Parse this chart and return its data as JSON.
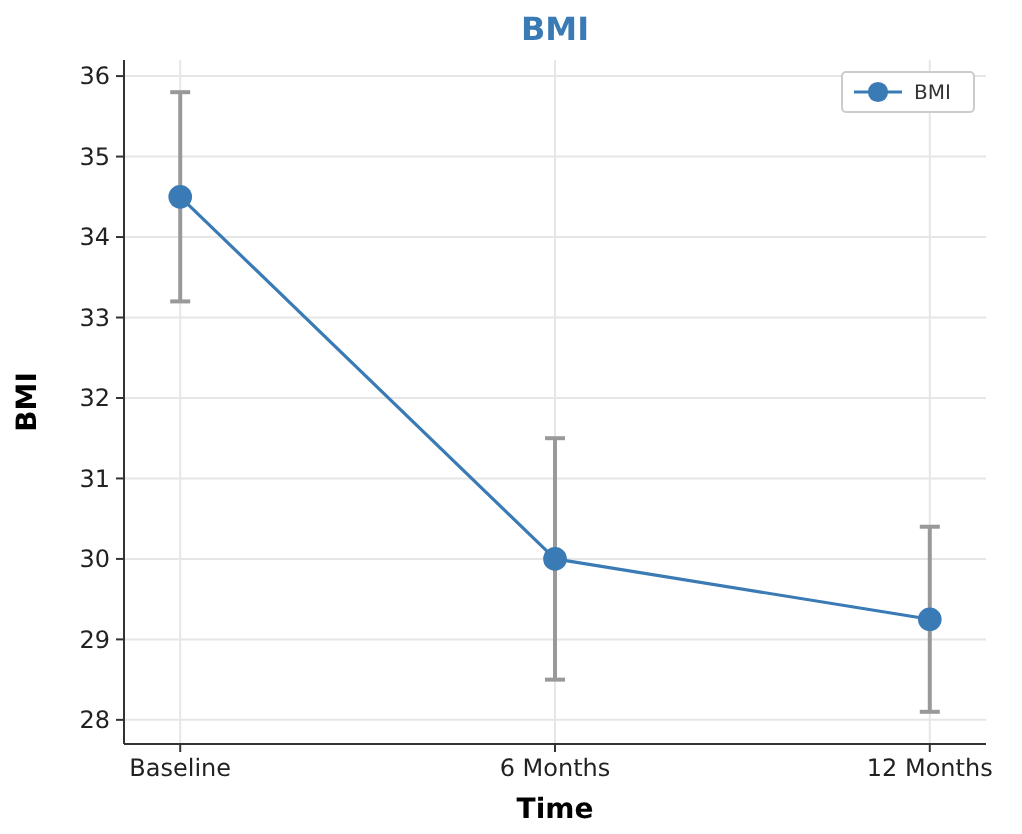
{
  "chart_data": {
    "type": "line",
    "title": "BMI",
    "xlabel": "Time",
    "ylabel": "BMI",
    "categories": [
      "Baseline",
      "6 Months",
      "12 Months"
    ],
    "series": [
      {
        "name": "BMI",
        "color": "#3a7ab5",
        "values": [
          34.5,
          30.0,
          29.25
        ],
        "errors": [
          1.3,
          1.5,
          1.15
        ]
      }
    ],
    "ylim": [
      27.7,
      36.2
    ],
    "yticks": [
      28,
      29,
      30,
      31,
      32,
      33,
      34,
      35,
      36
    ],
    "grid": true,
    "legend": "top right",
    "marker": "circle",
    "line_style": "solid"
  }
}
